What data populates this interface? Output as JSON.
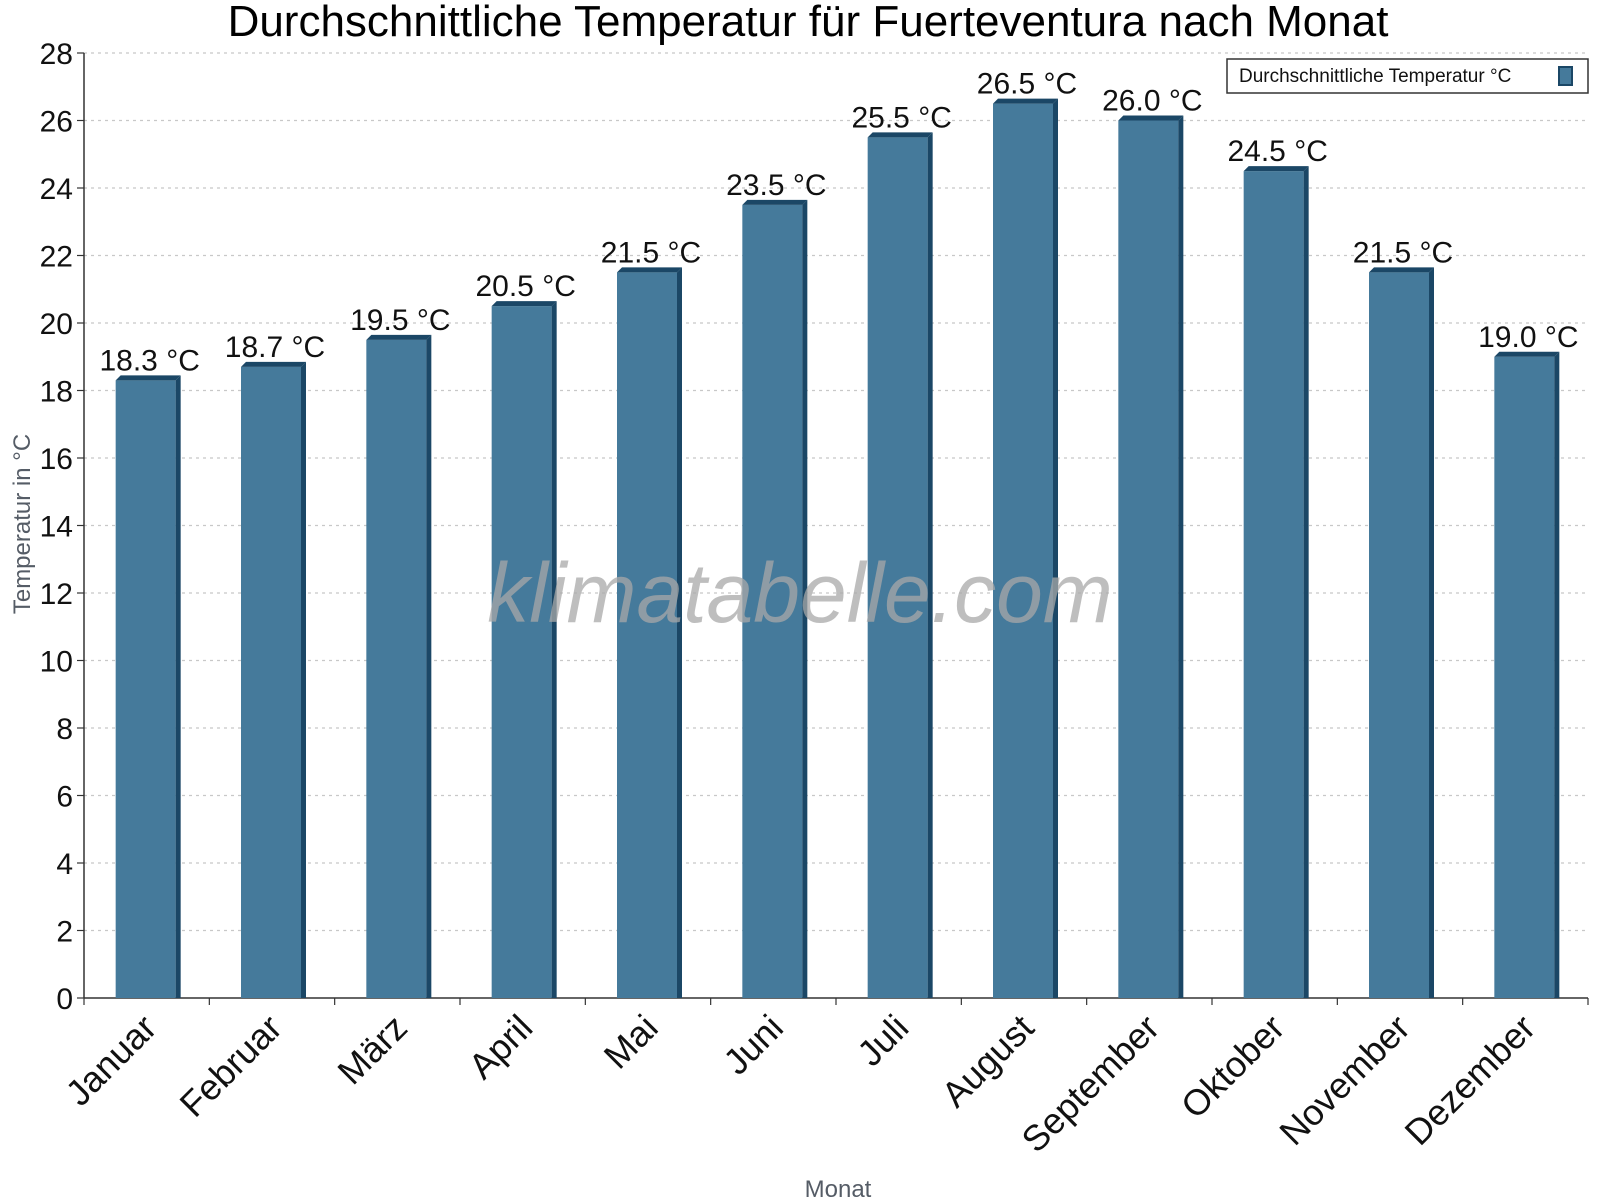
{
  "chart_data": {
    "type": "bar",
    "title": "Durchschnittliche Temperatur für Fuerteventura nach Monat",
    "xlabel": "Monat",
    "ylabel": "Temperatur in °C",
    "categories": [
      "Januar",
      "Februar",
      "März",
      "April",
      "Mai",
      "Juni",
      "Juli",
      "August",
      "September",
      "Oktober",
      "November",
      "Dezember"
    ],
    "series": [
      {
        "name": "Durchschnittliche Temperatur °C",
        "values": [
          18.3,
          18.7,
          19.5,
          20.5,
          21.5,
          23.5,
          25.5,
          26.5,
          26.0,
          24.5,
          21.5,
          19.0
        ],
        "data_labels": [
          "18.3 °C",
          "18.7 °C",
          "19.5 °C",
          "20.5 °C",
          "21.5 °C",
          "23.5 °C",
          "25.5 °C",
          "26.5 °C",
          "26.0 °C",
          "24.5 °C",
          "21.5 °C",
          "19.0 °C"
        ],
        "color": "#457a9b",
        "edge_color": "#1b4766"
      }
    ],
    "ylim": [
      0,
      28
    ],
    "yticks": [
      "0",
      "2",
      "4",
      "6",
      "8",
      "10",
      "12",
      "14",
      "16",
      "18",
      "20",
      "22",
      "24",
      "26",
      "28"
    ],
    "grid": true,
    "legend_position": "top-right"
  },
  "watermark": "klimatabelle.com"
}
